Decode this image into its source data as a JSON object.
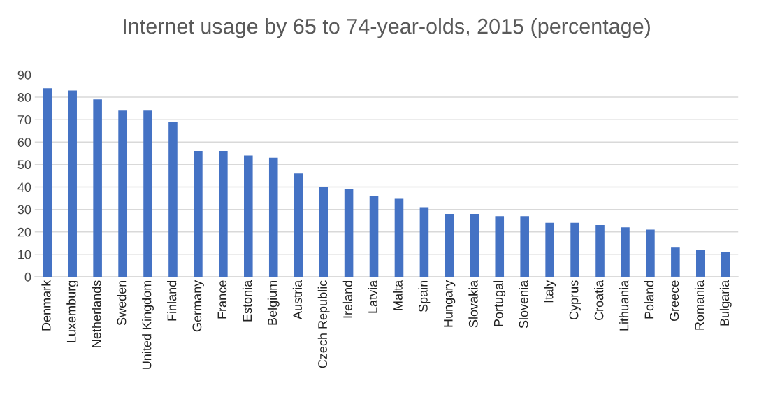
{
  "chart_data": {
    "type": "bar",
    "title": "Internet usage by 65 to 74-year-olds, 2015 (percentage)",
    "categories": [
      "Denmark",
      "Luxemburg",
      "Netherlands",
      "Sweden",
      "United Kingdom",
      "Finland",
      "Germany",
      "France",
      "Estonia",
      "Belgium",
      "Austria",
      "Czech Republic",
      "Ireland",
      "Latvia",
      "Malta",
      "Spain",
      "Hungary",
      "Slovakia",
      "Portugal",
      "Slovenia",
      "Italy",
      "Cyprus",
      "Croatia",
      "Lithuania",
      "Poland",
      "Greece",
      "Romania",
      "Bulgaria"
    ],
    "values": [
      84,
      83,
      79,
      74,
      74,
      69,
      56,
      56,
      54,
      53,
      46,
      40,
      39,
      36,
      35,
      31,
      28,
      28,
      27,
      27,
      24,
      24,
      23,
      22,
      21,
      13,
      12,
      11
    ],
    "color": "#4472c4",
    "ylim": [
      0,
      90
    ],
    "yticks": [
      0,
      10,
      20,
      30,
      40,
      50,
      60,
      70,
      80,
      90
    ],
    "grid": "y"
  }
}
